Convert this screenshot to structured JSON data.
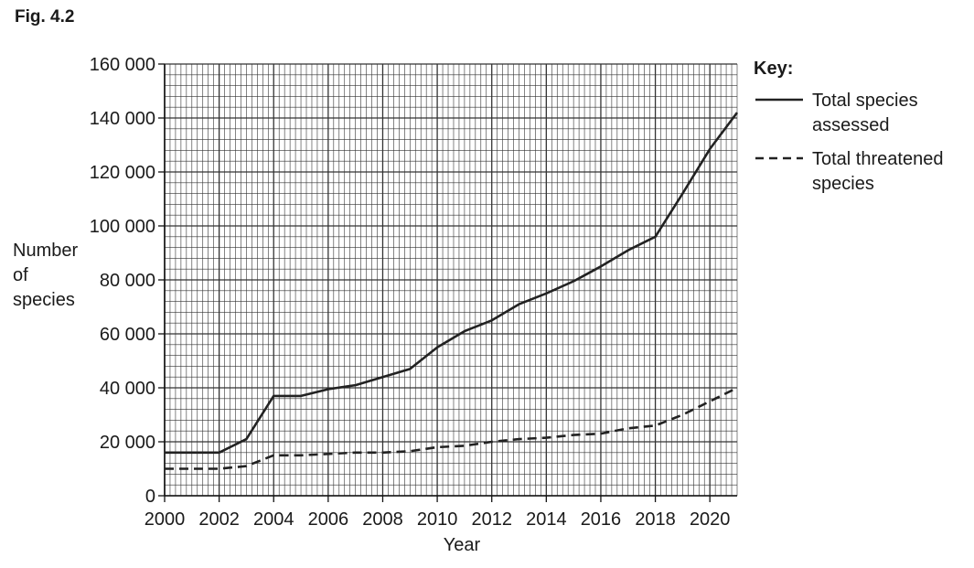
{
  "figure_label": "Fig. 4.2",
  "chart_data": {
    "type": "line",
    "title": "",
    "xlabel": "Year",
    "ylabel": "Number\nof\nspecies",
    "ylabel_lines": [
      "Number",
      "of",
      "species"
    ],
    "xlim": [
      2000,
      2021
    ],
    "ylim": [
      0,
      160000
    ],
    "x_ticks": [
      2000,
      2002,
      2004,
      2006,
      2008,
      2010,
      2012,
      2014,
      2016,
      2018,
      2020
    ],
    "x_tick_labels": [
      "2000",
      "2002",
      "2004",
      "2006",
      "2008",
      "2010",
      "2012",
      "2014",
      "2016",
      "2018",
      "2020"
    ],
    "y_ticks": [
      0,
      20000,
      40000,
      60000,
      80000,
      100000,
      120000,
      140000,
      160000
    ],
    "y_tick_labels": [
      "0",
      "20 000",
      "40 000",
      "60 000",
      "80 000",
      "100 000",
      "120 000",
      "140 000",
      "160 000"
    ],
    "grid": true,
    "legend_title": "Key:",
    "legend_position": "right",
    "series": [
      {
        "name": "Total species assessed",
        "name_lines": [
          "Total species",
          "assessed"
        ],
        "style": "solid",
        "x": [
          2000,
          2001,
          2002,
          2003,
          2004,
          2005,
          2006,
          2007,
          2008,
          2009,
          2010,
          2011,
          2012,
          2013,
          2014,
          2015,
          2016,
          2017,
          2018,
          2019,
          2020,
          2021
        ],
        "values": [
          16000,
          16000,
          16000,
          21000,
          37000,
          37000,
          39500,
          41000,
          44000,
          47000,
          55000,
          61000,
          65000,
          71000,
          75000,
          79500,
          85000,
          91000,
          96000,
          112000,
          128500,
          142000
        ]
      },
      {
        "name": "Total threatened species",
        "name_lines": [
          "Total threatened",
          "species"
        ],
        "style": "dashed",
        "x": [
          2000,
          2001,
          2002,
          2003,
          2004,
          2005,
          2006,
          2007,
          2008,
          2009,
          2010,
          2011,
          2012,
          2013,
          2014,
          2015,
          2016,
          2017,
          2018,
          2019,
          2020,
          2021
        ],
        "values": [
          10000,
          10000,
          10000,
          11000,
          15000,
          15000,
          15500,
          16000,
          16000,
          16500,
          18000,
          18500,
          20000,
          21000,
          21500,
          22500,
          23000,
          25000,
          26000,
          30000,
          35000,
          40000
        ]
      }
    ]
  }
}
